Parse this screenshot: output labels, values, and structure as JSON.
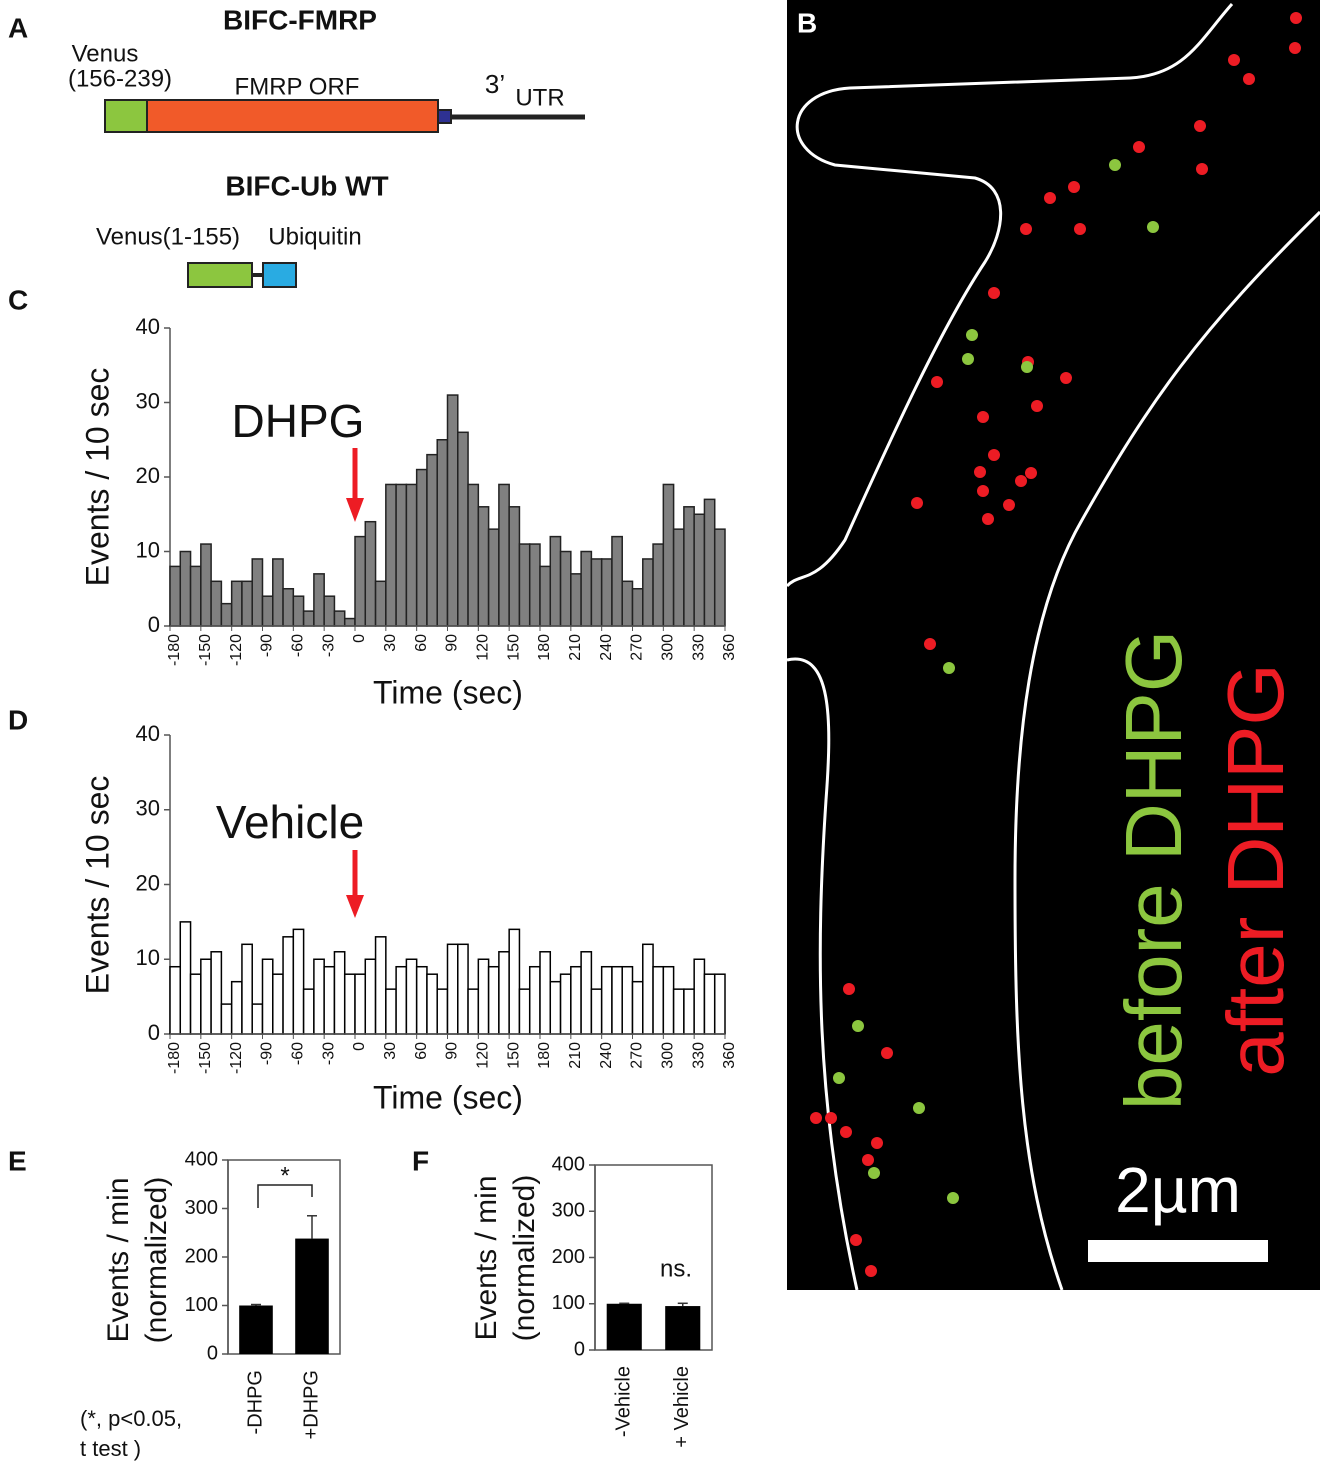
{
  "panels": {
    "a": "A",
    "b": "B",
    "c": "C",
    "d": "D",
    "e": "E",
    "f": "F"
  },
  "diagram_a": {
    "construct1_title": "BIFC-FMRP",
    "venus_label": "Venus",
    "venus_range": "(156-239)",
    "orf_label": "FMRP ORF",
    "utr_prime": "3’",
    "utr_label": "UTR",
    "construct2_title": "BIFC-Ub WT",
    "venus2_label": "Venus(1-155)",
    "ubiquitin_label": "Ubiquitin"
  },
  "image_b": {
    "before_word": "before",
    "before_drug": "DHPG",
    "after_word": "after",
    "after_drug": "DHPG",
    "scale_label": "2µm"
  },
  "chart_data": [
    {
      "type": "histogram",
      "annotation": "DHPG",
      "xlabel": "Time (sec)",
      "ylabel": "Events / 10 sec",
      "bins": [
        -180,
        -170,
        -160,
        -150,
        -140,
        -130,
        -120,
        -110,
        -100,
        -90,
        -80,
        -70,
        -60,
        -50,
        -40,
        -30,
        -20,
        -10,
        0,
        10,
        20,
        30,
        40,
        50,
        60,
        70,
        80,
        90,
        100,
        110,
        120,
        130,
        140,
        150,
        160,
        170,
        180,
        190,
        200,
        210,
        220,
        230,
        240,
        250,
        260,
        270,
        280,
        290,
        300,
        310,
        320,
        330,
        340,
        350,
        360
      ],
      "counts": [
        8,
        10,
        8,
        11,
        6,
        3,
        6,
        6,
        9,
        4,
        9,
        5,
        4,
        2,
        7,
        4,
        2,
        1,
        12,
        14,
        6,
        19,
        19,
        19,
        21,
        23,
        25,
        31,
        26,
        19,
        16,
        13,
        19,
        16,
        11,
        11,
        8,
        12,
        10,
        7,
        10,
        9,
        9,
        12,
        6,
        5,
        9,
        11,
        19,
        13,
        16,
        15,
        17,
        13
      ],
      "color": "#808080",
      "edgecolor": "#222222",
      "xlim": [
        -180,
        360
      ],
      "xticks": [
        -180,
        -150,
        -120,
        -90,
        -60,
        -30,
        0,
        30,
        60,
        90,
        120,
        150,
        180,
        210,
        240,
        270,
        300,
        330,
        360
      ],
      "ylim": [
        0,
        40
      ],
      "yticks": [
        0,
        10,
        20,
        30,
        40
      ]
    },
    {
      "type": "histogram",
      "annotation": "Vehicle",
      "xlabel": "Time (sec)",
      "ylabel": "Events / 10 sec",
      "bins": [
        -180,
        -170,
        -160,
        -150,
        -140,
        -130,
        -120,
        -110,
        -100,
        -90,
        -80,
        -70,
        -60,
        -50,
        -40,
        -30,
        -20,
        -10,
        0,
        10,
        20,
        30,
        40,
        50,
        60,
        70,
        80,
        90,
        100,
        110,
        120,
        130,
        140,
        150,
        160,
        170,
        180,
        190,
        200,
        210,
        220,
        230,
        240,
        250,
        260,
        270,
        280,
        290,
        300,
        310,
        320,
        330,
        340,
        350,
        360
      ],
      "counts": [
        9,
        15,
        8,
        10,
        11,
        4,
        7,
        12,
        4,
        10,
        8,
        13,
        14,
        6,
        10,
        9,
        11,
        8,
        8,
        10,
        13,
        6,
        9,
        10,
        9,
        8,
        6,
        12,
        12,
        6,
        10,
        9,
        11,
        14,
        6,
        9,
        11,
        7,
        8,
        9,
        11,
        6,
        9,
        9,
        9,
        7,
        12,
        9,
        9,
        6,
        6,
        10,
        8,
        8
      ],
      "color": "#ffffff",
      "edgecolor": "#000000",
      "xlim": [
        -180,
        360
      ],
      "xticks": [
        -180,
        -150,
        -120,
        -90,
        -60,
        -30,
        0,
        30,
        60,
        90,
        120,
        150,
        180,
        210,
        240,
        270,
        300,
        330,
        360
      ],
      "ylim": [
        0,
        40
      ],
      "yticks": [
        0,
        10,
        20,
        30,
        40
      ]
    },
    {
      "type": "bar",
      "ylabel": [
        "Events / min",
        "(normalized)"
      ],
      "categories": [
        "-DHPG",
        "+DHPG"
      ],
      "values": [
        100,
        238
      ],
      "errors": [
        2,
        47
      ],
      "color": "#000000",
      "significance": "*",
      "note": [
        "(*, p<0.05,",
        "t test )"
      ],
      "frame": true,
      "ylim": [
        0,
        400
      ],
      "yticks": [
        0,
        100,
        200,
        300,
        400
      ]
    },
    {
      "type": "bar",
      "ylabel": [
        "Events / min",
        "(normalized)"
      ],
      "categories": [
        "-Vehicle",
        "+ Vehicle"
      ],
      "values": [
        100,
        95
      ],
      "errors": [
        1,
        6
      ],
      "color": "#000000",
      "significance": "ns.",
      "frame": true,
      "ylim": [
        0,
        400
      ],
      "yticks": [
        0,
        100,
        200,
        300,
        400
      ]
    }
  ]
}
